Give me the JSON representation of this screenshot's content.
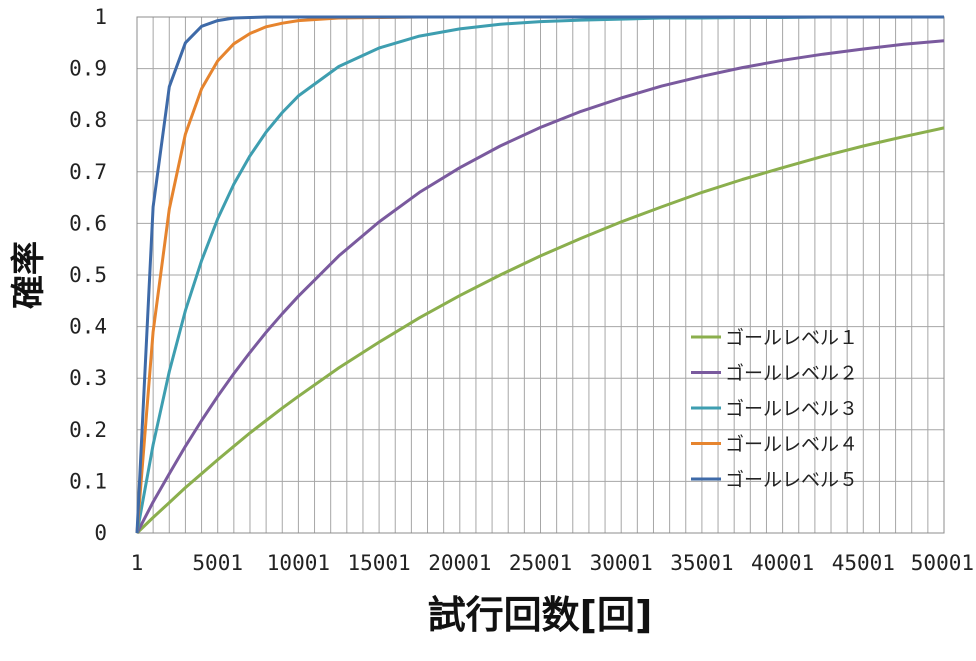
{
  "chart_data": {
    "type": "line",
    "xlabel": "試行回数[回]",
    "ylabel": "確率",
    "xlim": [
      1,
      50001
    ],
    "ylim": [
      0,
      1
    ],
    "x_ticks": [
      1,
      5001,
      10001,
      15001,
      20001,
      25001,
      30001,
      35001,
      40001,
      45001,
      50001
    ],
    "x_tick_labels": [
      "1",
      "5001",
      "10001",
      "15001",
      "20001",
      "25001",
      "30001",
      "35001",
      "40001",
      "45001",
      "50001"
    ],
    "y_ticks": [
      0,
      0.1,
      0.2,
      0.3,
      0.4,
      0.5,
      0.6,
      0.7,
      0.8,
      0.9,
      1
    ],
    "y_tick_labels": [
      "0",
      "0.1",
      "0.2",
      "0.3",
      "0.4",
      "0.5",
      "0.6",
      "0.7",
      "0.8",
      "0.9",
      "1"
    ],
    "grid": true,
    "legend_position": "right",
    "x": [
      1,
      1001,
      2001,
      3001,
      4001,
      5001,
      6001,
      7001,
      8001,
      9001,
      10001,
      12501,
      15001,
      17501,
      20001,
      22501,
      25001,
      27501,
      30001,
      32501,
      35001,
      37501,
      40001,
      42501,
      45001,
      47501,
      50001
    ],
    "series": [
      {
        "name": "ゴールレベル１",
        "color": "#8BAF4D",
        "values": [
          0,
          0.03,
          0.059,
          0.088,
          0.115,
          0.142,
          0.168,
          0.194,
          0.218,
          0.242,
          0.265,
          0.32,
          0.37,
          0.417,
          0.46,
          0.5,
          0.537,
          0.571,
          0.603,
          0.632,
          0.66,
          0.685,
          0.708,
          0.73,
          0.75,
          0.768,
          0.785
        ]
      },
      {
        "name": "ゴールレベル２",
        "color": "#7A5A9E",
        "values": [
          0,
          0.06,
          0.115,
          0.168,
          0.218,
          0.265,
          0.309,
          0.35,
          0.389,
          0.425,
          0.459,
          0.537,
          0.603,
          0.66,
          0.708,
          0.75,
          0.786,
          0.817,
          0.843,
          0.866,
          0.885,
          0.902,
          0.916,
          0.928,
          0.938,
          0.947,
          0.954
        ]
      },
      {
        "name": "ゴールレベル３",
        "color": "#3E9EB0",
        "values": [
          0,
          0.171,
          0.313,
          0.431,
          0.528,
          0.609,
          0.676,
          0.731,
          0.777,
          0.815,
          0.847,
          0.904,
          0.94,
          0.963,
          0.977,
          0.986,
          0.991,
          0.994,
          0.996,
          0.998,
          0.998,
          0.999,
          0.999,
          1.0,
          1.0,
          1.0,
          1.0
        ]
      },
      {
        "name": "ゴールレベル４",
        "color": "#E6842E",
        "values": [
          0,
          0.39,
          0.628,
          0.773,
          0.861,
          0.915,
          0.948,
          0.968,
          0.981,
          0.988,
          0.993,
          0.998,
          0.999,
          1.0,
          1.0,
          1.0,
          1.0,
          1.0,
          1.0,
          1.0,
          1.0,
          1.0,
          1.0,
          1.0,
          1.0,
          1.0,
          1.0
        ]
      },
      {
        "name": "ゴールレベル５",
        "color": "#3E6AA8",
        "values": [
          0,
          0.632,
          0.865,
          0.95,
          0.982,
          0.993,
          0.998,
          0.999,
          1.0,
          1.0,
          1.0,
          1.0,
          1.0,
          1.0,
          1.0,
          1.0,
          1.0,
          1.0,
          1.0,
          1.0,
          1.0,
          1.0,
          1.0,
          1.0,
          1.0,
          1.0,
          1.0
        ]
      }
    ]
  }
}
